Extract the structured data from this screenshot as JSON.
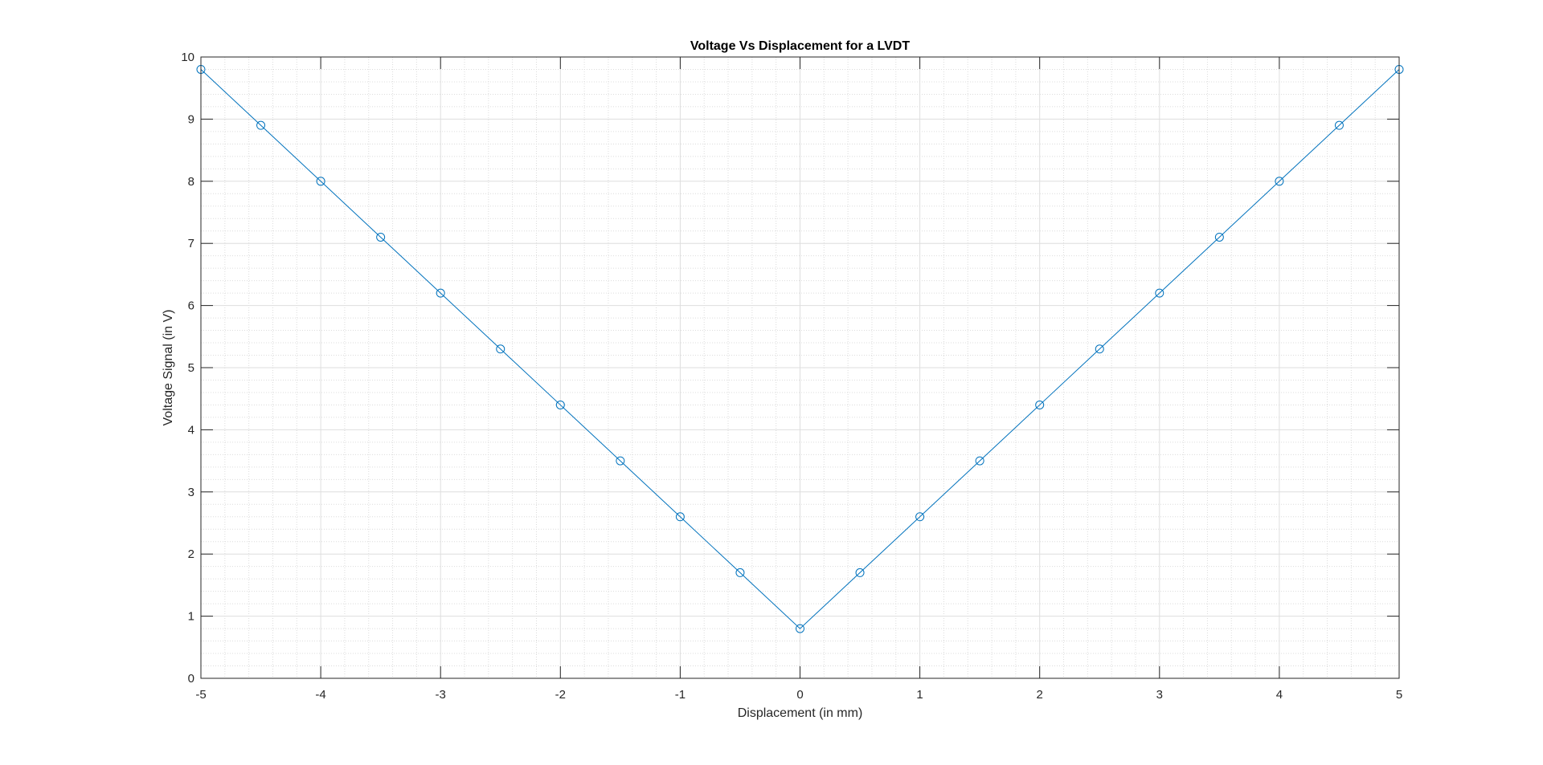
{
  "chart_data": {
    "type": "line",
    "title": "Voltage Vs Displacement for a LVDT",
    "xlabel": "Displacement (in mm)",
    "ylabel": "Voltage Signal (in V)",
    "xlim": [
      -5,
      5
    ],
    "ylim": [
      0,
      10
    ],
    "xticks": [
      -5,
      -4,
      -3,
      -2,
      -1,
      0,
      1,
      2,
      3,
      4,
      5
    ],
    "yticks": [
      0,
      1,
      2,
      3,
      4,
      5,
      6,
      7,
      8,
      9,
      10
    ],
    "grid": true,
    "minor_grid": true,
    "line_color": "#0072BD",
    "marker": "circle",
    "series": [
      {
        "x": [
          -5,
          -4.5,
          -4,
          -3.5,
          -3,
          -2.5,
          -2,
          -1.5,
          -1,
          -0.5,
          0,
          0.5,
          1,
          1.5,
          2,
          2.5,
          3,
          3.5,
          4,
          4.5,
          5
        ],
        "y": [
          9.8,
          8.9,
          8.0,
          7.1,
          6.2,
          5.3,
          4.4,
          3.5,
          2.6,
          1.7,
          0.8,
          1.7,
          2.6,
          3.5,
          4.4,
          5.3,
          6.2,
          7.1,
          8.0,
          8.9,
          9.8
        ]
      }
    ]
  }
}
